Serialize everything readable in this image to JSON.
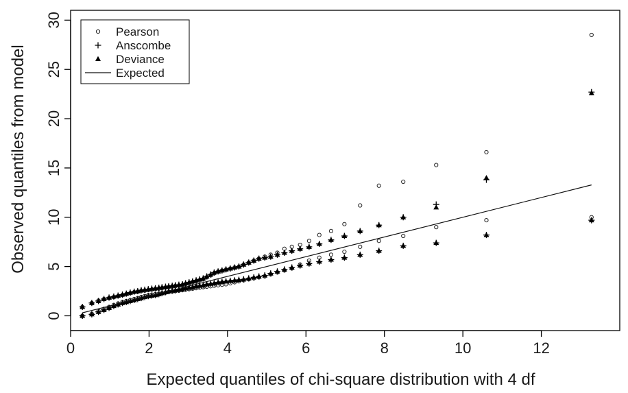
{
  "chart_data": {
    "type": "scatter",
    "xlabel": "Expected quantiles of chi-square distribution with 4 df",
    "ylabel": "Observed quantiles from model",
    "xlim": [
      0,
      14
    ],
    "ylim": [
      -1.5,
      31
    ],
    "xticks": [
      0,
      2,
      4,
      6,
      8,
      10,
      12
    ],
    "yticks": [
      0,
      5,
      10,
      15,
      20,
      25,
      30
    ],
    "grid": false,
    "legend": {
      "position": "top-left",
      "entries": [
        {
          "label": "Pearson",
          "symbol": "open-circle"
        },
        {
          "label": "Anscombe",
          "symbol": "plus"
        },
        {
          "label": "Deviance",
          "symbol": "filled-triangle"
        },
        {
          "label": "Expected",
          "symbol": "line"
        }
      ]
    },
    "x": [
      0.3,
      0.54,
      0.71,
      0.85,
      0.98,
      1.1,
      1.21,
      1.32,
      1.42,
      1.52,
      1.62,
      1.71,
      1.8,
      1.89,
      1.98,
      2.07,
      2.16,
      2.25,
      2.33,
      2.42,
      2.5,
      2.59,
      2.67,
      2.76,
      2.85,
      2.93,
      3.02,
      3.11,
      3.2,
      3.29,
      3.38,
      3.47,
      3.57,
      3.66,
      3.76,
      3.86,
      3.96,
      4.07,
      4.18,
      4.29,
      4.41,
      4.54,
      4.67,
      4.8,
      4.95,
      5.1,
      5.27,
      5.45,
      5.64,
      5.85,
      6.08,
      6.34,
      6.64,
      6.98,
      7.38,
      7.86,
      8.48,
      9.32,
      10.6,
      13.28
    ],
    "series": [
      {
        "name": "Pearson",
        "symbol": "open-circle",
        "values": [
          0.0,
          0.2,
          0.5,
          0.7,
          0.9,
          1.1,
          1.25,
          1.4,
          1.5,
          1.6,
          1.7,
          1.8,
          1.9,
          2.0,
          2.1,
          2.15,
          2.2,
          2.25,
          2.3,
          2.35,
          2.4,
          2.45,
          2.5,
          2.55,
          2.6,
          2.65,
          2.7,
          2.75,
          2.8,
          2.85,
          2.9,
          2.95,
          3.0,
          3.05,
          3.1,
          3.15,
          3.2,
          3.3,
          3.4,
          3.5,
          3.6,
          3.7,
          3.8,
          3.9,
          4.0,
          4.2,
          4.4,
          4.6,
          4.8,
          5.2,
          5.6,
          5.9,
          6.2,
          6.5,
          7.0,
          7.6,
          8.1,
          9.0,
          9.7,
          10.0
        ]
      },
      {
        "name": "Pearson",
        "symbol": "open-circle",
        "values": [
          0.9,
          1.3,
          1.55,
          1.7,
          1.8,
          1.9,
          2.0,
          2.1,
          2.2,
          2.3,
          2.4,
          2.45,
          2.5,
          2.55,
          2.6,
          2.65,
          2.7,
          2.75,
          2.8,
          2.85,
          2.9,
          2.95,
          3.0,
          3.05,
          3.1,
          3.2,
          3.3,
          3.4,
          3.5,
          3.6,
          3.7,
          3.9,
          4.1,
          4.3,
          4.5,
          4.6,
          4.7,
          4.8,
          4.9,
          5.0,
          5.2,
          5.4,
          5.6,
          5.8,
          6.0,
          6.2,
          6.4,
          6.8,
          7.0,
          7.2,
          7.6,
          8.2,
          8.6,
          9.3,
          11.2,
          13.2,
          13.6,
          15.3,
          16.6,
          28.5
        ]
      },
      {
        "name": "Anscombe",
        "symbol": "plus",
        "values": [
          0.0,
          0.15,
          0.4,
          0.6,
          0.8,
          1.0,
          1.15,
          1.3,
          1.4,
          1.5,
          1.6,
          1.7,
          1.8,
          1.9,
          2.0,
          2.05,
          2.1,
          2.2,
          2.3,
          2.4,
          2.5,
          2.55,
          2.6,
          2.65,
          2.7,
          2.8,
          2.85,
          2.9,
          3.0,
          3.05,
          3.1,
          3.2,
          3.25,
          3.3,
          3.4,
          3.45,
          3.5,
          3.55,
          3.6,
          3.65,
          3.7,
          3.8,
          3.9,
          4.0,
          4.1,
          4.3,
          4.5,
          4.7,
          4.9,
          5.1,
          5.3,
          5.5,
          5.7,
          5.9,
          6.2,
          6.6,
          7.1,
          7.4,
          8.2,
          9.7
        ]
      },
      {
        "name": "Anscombe",
        "symbol": "plus",
        "values": [
          0.9,
          1.3,
          1.5,
          1.7,
          1.85,
          1.95,
          2.05,
          2.15,
          2.25,
          2.35,
          2.45,
          2.5,
          2.6,
          2.65,
          2.7,
          2.75,
          2.8,
          2.85,
          2.9,
          2.95,
          3.0,
          3.05,
          3.1,
          3.15,
          3.2,
          3.3,
          3.4,
          3.5,
          3.6,
          3.7,
          3.8,
          4.0,
          4.2,
          4.4,
          4.5,
          4.6,
          4.7,
          4.8,
          4.9,
          5.0,
          5.2,
          5.4,
          5.6,
          5.8,
          5.9,
          6.0,
          6.2,
          6.4,
          6.6,
          6.8,
          7.0,
          7.3,
          7.7,
          8.1,
          8.6,
          9.2,
          10.0,
          11.3,
          13.8,
          22.7
        ]
      },
      {
        "name": "Deviance",
        "symbol": "filled-triangle",
        "values": [
          0.0,
          0.15,
          0.4,
          0.6,
          0.8,
          1.0,
          1.15,
          1.3,
          1.4,
          1.5,
          1.6,
          1.7,
          1.8,
          1.9,
          2.0,
          2.05,
          2.1,
          2.2,
          2.3,
          2.4,
          2.5,
          2.55,
          2.6,
          2.65,
          2.7,
          2.8,
          2.85,
          2.9,
          3.0,
          3.05,
          3.1,
          3.2,
          3.25,
          3.3,
          3.4,
          3.45,
          3.5,
          3.55,
          3.6,
          3.65,
          3.7,
          3.8,
          3.9,
          4.0,
          4.1,
          4.3,
          4.5,
          4.7,
          4.9,
          5.1,
          5.3,
          5.5,
          5.7,
          5.9,
          6.2,
          6.6,
          7.1,
          7.4,
          8.2,
          9.7
        ]
      },
      {
        "name": "Deviance",
        "symbol": "filled-triangle",
        "values": [
          0.9,
          1.3,
          1.5,
          1.7,
          1.85,
          1.95,
          2.05,
          2.15,
          2.25,
          2.35,
          2.45,
          2.5,
          2.6,
          2.65,
          2.7,
          2.75,
          2.8,
          2.85,
          2.9,
          2.95,
          3.0,
          3.05,
          3.1,
          3.15,
          3.2,
          3.3,
          3.4,
          3.5,
          3.6,
          3.7,
          3.8,
          4.0,
          4.2,
          4.4,
          4.5,
          4.6,
          4.7,
          4.8,
          4.9,
          5.0,
          5.2,
          5.4,
          5.6,
          5.8,
          5.9,
          6.0,
          6.2,
          6.4,
          6.6,
          6.8,
          7.0,
          7.3,
          7.7,
          8.1,
          8.6,
          9.2,
          10.0,
          11.0,
          14.0,
          22.6
        ]
      }
    ],
    "expected_line": {
      "name": "Expected",
      "x": [
        0.3,
        13.28
      ],
      "y": [
        0.3,
        13.28
      ]
    }
  }
}
